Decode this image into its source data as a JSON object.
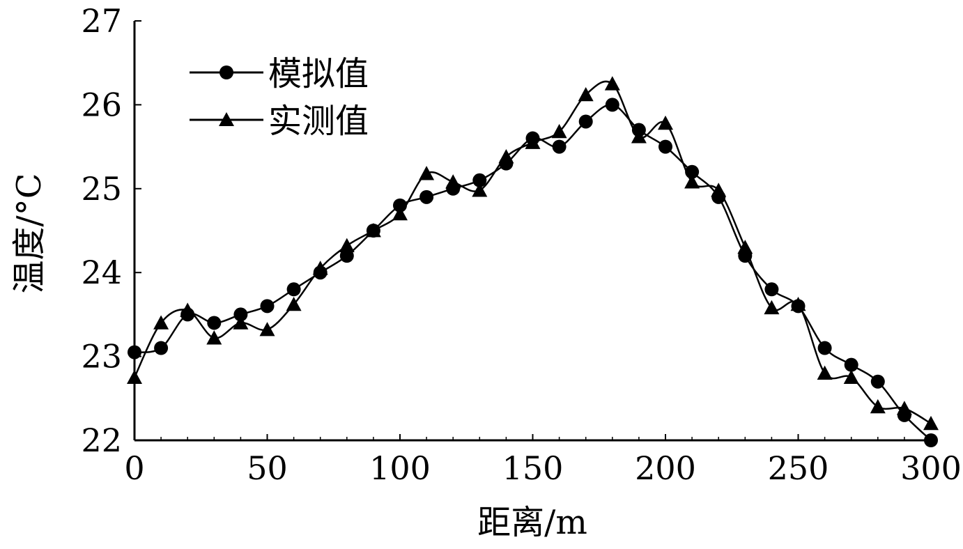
{
  "chart_data": {
    "type": "line",
    "title": "",
    "xlabel": "距离/m",
    "ylabel": "温度/°C",
    "xlim": [
      0,
      300
    ],
    "ylim": [
      22,
      27
    ],
    "xticks": [
      "0",
      "50",
      "100",
      "150",
      "200",
      "250",
      "300"
    ],
    "yticks": [
      "22",
      "23",
      "24",
      "25",
      "26",
      "27"
    ],
    "grid": false,
    "legend_position": "top-left",
    "x": [
      0,
      10,
      20,
      30,
      40,
      50,
      60,
      70,
      80,
      90,
      100,
      110,
      120,
      130,
      140,
      150,
      160,
      170,
      180,
      190,
      200,
      210,
      220,
      230,
      240,
      250,
      260,
      270,
      280,
      290,
      300
    ],
    "series": [
      {
        "name": "模拟值",
        "marker": "circle",
        "color": "#000000",
        "values": [
          23.05,
          23.1,
          23.5,
          23.4,
          23.5,
          23.6,
          23.8,
          24.0,
          24.2,
          24.5,
          24.8,
          24.9,
          25.0,
          25.1,
          25.3,
          25.6,
          25.5,
          25.8,
          26.0,
          25.7,
          25.5,
          25.2,
          24.9,
          24.2,
          23.8,
          23.6,
          23.1,
          22.9,
          22.7,
          22.3,
          22.0
        ]
      },
      {
        "name": "实测值",
        "marker": "triangle",
        "color": "#000000",
        "values": [
          22.75,
          23.4,
          23.55,
          23.22,
          23.4,
          23.32,
          23.62,
          24.05,
          24.32,
          24.5,
          24.7,
          25.18,
          25.08,
          24.98,
          25.38,
          25.55,
          25.68,
          26.12,
          26.25,
          25.62,
          25.78,
          25.08,
          24.98,
          24.3,
          23.58,
          23.62,
          22.8,
          22.75,
          22.4,
          22.38,
          22.2
        ]
      }
    ]
  }
}
